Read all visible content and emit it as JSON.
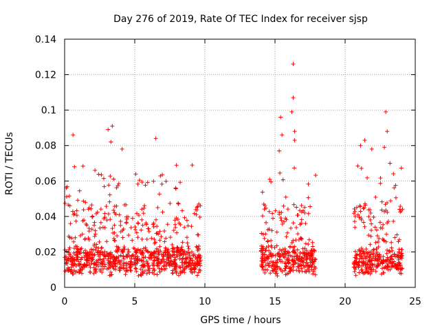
{
  "chart_data": {
    "type": "scatter",
    "title": "Day 276 of 2019, Rate Of TEC Index for receiver sjsp",
    "xlabel": "GPS time / hours",
    "ylabel": "ROTI / TECUs",
    "xlim": [
      0,
      25
    ],
    "ylim": [
      0,
      0.14
    ],
    "x_ticks": [
      0,
      5,
      10,
      15,
      20,
      25
    ],
    "y_ticks": [
      0,
      0.02,
      0.04,
      0.06,
      0.08,
      0.1,
      0.12,
      0.14
    ],
    "x_tick_labels": [
      "0",
      "5",
      "10",
      "15",
      "20",
      "25"
    ],
    "y_tick_labels": [
      "0",
      "0.02",
      "0.04",
      "0.06",
      "0.08",
      "0.1",
      "0.12",
      "0.14"
    ],
    "grid": true,
    "marker": "+",
    "marker_color": "#ff0000",
    "segments": [
      {
        "x_start": 0.0,
        "x_end": 9.7,
        "base": 0.016,
        "spread": 0.012
      },
      {
        "x_start": 14.0,
        "x_end": 17.9,
        "base": 0.015,
        "spread": 0.012
      },
      {
        "x_start": 20.6,
        "x_end": 24.1,
        "base": 0.014,
        "spread": 0.011
      }
    ],
    "notable_points": [
      {
        "x": 0.6,
        "y": 0.086
      },
      {
        "x": 0.7,
        "y": 0.068
      },
      {
        "x": 3.1,
        "y": 0.089
      },
      {
        "x": 3.4,
        "y": 0.091
      },
      {
        "x": 3.3,
        "y": 0.082
      },
      {
        "x": 4.1,
        "y": 0.078
      },
      {
        "x": 6.5,
        "y": 0.084
      },
      {
        "x": 9.1,
        "y": 0.069
      },
      {
        "x": 15.4,
        "y": 0.096
      },
      {
        "x": 15.5,
        "y": 0.086
      },
      {
        "x": 15.3,
        "y": 0.077
      },
      {
        "x": 16.3,
        "y": 0.126
      },
      {
        "x": 16.3,
        "y": 0.107
      },
      {
        "x": 16.2,
        "y": 0.099
      },
      {
        "x": 16.4,
        "y": 0.088
      },
      {
        "x": 16.4,
        "y": 0.083
      },
      {
        "x": 21.1,
        "y": 0.08
      },
      {
        "x": 21.4,
        "y": 0.083
      },
      {
        "x": 21.9,
        "y": 0.078
      },
      {
        "x": 22.8,
        "y": 0.079
      },
      {
        "x": 22.9,
        "y": 0.099
      },
      {
        "x": 23.0,
        "y": 0.088
      },
      {
        "x": 23.2,
        "y": 0.07
      }
    ]
  }
}
